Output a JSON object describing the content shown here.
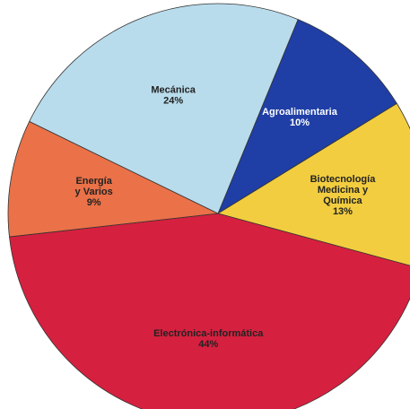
{
  "chart_data": {
    "type": "pie",
    "categories": [
      [
        "Agroalimentaria"
      ],
      [
        "Biotecnología",
        "Medicina y",
        "Química"
      ],
      [
        "Electrónica-informática"
      ],
      [
        "Energía",
        "y Varios"
      ],
      [
        "Mecánica"
      ]
    ],
    "values": [
      10,
      13,
      44,
      9,
      24
    ],
    "value_labels": [
      "10%",
      "13%",
      "44%",
      "9%",
      "24%"
    ],
    "colors": [
      "#1f3fa6",
      "#f2cd3f",
      "#d6203f",
      "#ea7148",
      "#b9dcec"
    ]
  }
}
